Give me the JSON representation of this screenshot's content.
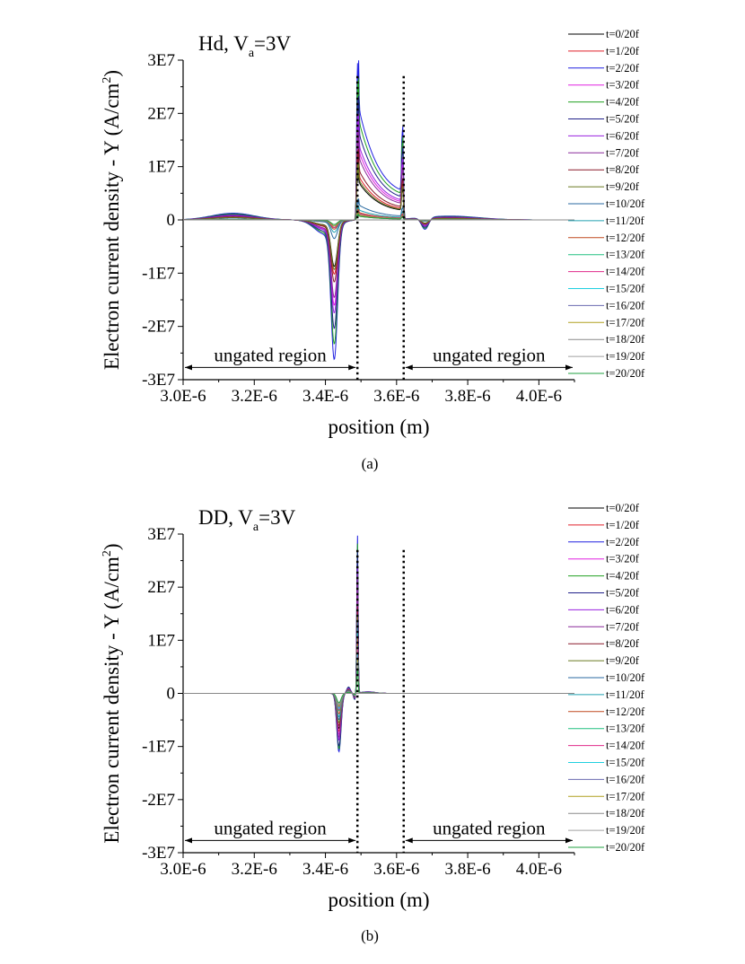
{
  "chart_data": [
    {
      "type": "line",
      "panel": "(a)",
      "title": "Hd, V",
      "title_sub": "a",
      "title_tail": "=3V",
      "xlabel": "position (m)",
      "ylabel": "Electron current density - Y (A/cm",
      "ylabel_sup": "2",
      "ylabel_tail": ")",
      "xlim": [
        3e-06,
        4.1e-06
      ],
      "ylim": [
        -30000000.0,
        30000000.0
      ],
      "xticks": [
        "3.0E-6",
        "3.2E-6",
        "3.4E-6",
        "3.6E-6",
        "3.8E-6",
        "4.0E-6"
      ],
      "yticks": [
        "3E7",
        "2E7",
        "1E7",
        "0",
        "-1E7",
        "-2E7",
        "-3E7"
      ],
      "gate_edges": [
        3.49e-06,
        3.62e-06
      ],
      "annotations": [
        "ungated region",
        "ungated region"
      ],
      "legend_position": "right",
      "series": [
        {
          "name": "t=0/20f",
          "color": "#000000",
          "amp": 0.3
        },
        {
          "name": "t=1/20f",
          "color": "#e0202a",
          "amp": 0.35
        },
        {
          "name": "t=2/20f",
          "color": "#2020e0",
          "amp": 0.9
        },
        {
          "name": "t=3/20f",
          "color": "#e020e0",
          "amp": 0.55
        },
        {
          "name": "t=4/20f",
          "color": "#20a020",
          "amp": 0.8
        },
        {
          "name": "t=5/20f",
          "color": "#20208a",
          "amp": 0.7
        },
        {
          "name": "t=6/20f",
          "color": "#9a20e0",
          "amp": 0.6
        },
        {
          "name": "t=7/20f",
          "color": "#8a2a9a",
          "amp": 0.5
        },
        {
          "name": "t=8/20f",
          "color": "#8a1a2a",
          "amp": 0.4
        },
        {
          "name": "t=9/20f",
          "color": "#6a7a20",
          "amp": 0.32
        },
        {
          "name": "t=10/20f",
          "color": "#2a6aa0",
          "amp": 0.12
        },
        {
          "name": "t=11/20f",
          "color": "#20a0b0",
          "amp": 0.08
        },
        {
          "name": "t=12/20f",
          "color": "#c04a20",
          "amp": 0.06
        },
        {
          "name": "t=13/20f",
          "color": "#20c080",
          "amp": 0.05
        },
        {
          "name": "t=14/20f",
          "color": "#e02a8a",
          "amp": 0.05
        },
        {
          "name": "t=15/20f",
          "color": "#20d0e0",
          "amp": 0.04
        },
        {
          "name": "t=16/20f",
          "color": "#6a6ab0",
          "amp": 0.04
        },
        {
          "name": "t=17/20f",
          "color": "#b0a020",
          "amp": 0.04
        },
        {
          "name": "t=18/20f",
          "color": "#8a8a8a",
          "amp": 0.03
        },
        {
          "name": "t=19/20f",
          "color": "#a0a0a0",
          "amp": 0.03
        },
        {
          "name": "t=20/20f",
          "color": "#20a040",
          "amp": 0.03
        }
      ],
      "caption": "(a)"
    },
    {
      "type": "line",
      "panel": "(b)",
      "title": "DD, V",
      "title_sub": "a",
      "title_tail": "=3V",
      "xlabel": "position (m)",
      "ylabel": "Electron current density - Y (A/cm",
      "ylabel_sup": "2",
      "ylabel_tail": ")",
      "xlim": [
        3e-06,
        4.1e-06
      ],
      "ylim": [
        -30000000.0,
        30000000.0
      ],
      "xticks": [
        "3.0E-6",
        "3.2E-6",
        "3.4E-6",
        "3.6E-6",
        "3.8E-6",
        "4.0E-6"
      ],
      "yticks": [
        "3E7",
        "2E7",
        "1E7",
        "0",
        "-1E7",
        "-2E7",
        "-3E7"
      ],
      "gate_edges": [
        3.49e-06,
        3.62e-06
      ],
      "annotations": [
        "ungated region",
        "ungated region"
      ],
      "legend_position": "right",
      "series": [
        {
          "name": "t=0/20f",
          "color": "#000000",
          "amp": 0.6
        },
        {
          "name": "t=1/20f",
          "color": "#e0202a",
          "amp": 0.65
        },
        {
          "name": "t=2/20f",
          "color": "#2020e0",
          "amp": 1.0
        },
        {
          "name": "t=3/20f",
          "color": "#e020e0",
          "amp": 0.7
        },
        {
          "name": "t=4/20f",
          "color": "#20a020",
          "amp": 0.95
        },
        {
          "name": "t=5/20f",
          "color": "#20208a",
          "amp": 0.9
        },
        {
          "name": "t=6/20f",
          "color": "#9a20e0",
          "amp": 0.8
        },
        {
          "name": "t=7/20f",
          "color": "#8a2a9a",
          "amp": 0.75
        },
        {
          "name": "t=8/20f",
          "color": "#8a1a2a",
          "amp": 0.55
        },
        {
          "name": "t=9/20f",
          "color": "#6a7a20",
          "amp": 0.5
        },
        {
          "name": "t=10/20f",
          "color": "#2a6aa0",
          "amp": 0.45
        },
        {
          "name": "t=11/20f",
          "color": "#20a0b0",
          "amp": 0.4
        },
        {
          "name": "t=12/20f",
          "color": "#c04a20",
          "amp": 0.35
        },
        {
          "name": "t=13/20f",
          "color": "#20c080",
          "amp": 0.3
        },
        {
          "name": "t=14/20f",
          "color": "#e02a8a",
          "amp": 0.28
        },
        {
          "name": "t=15/20f",
          "color": "#20d0e0",
          "amp": 0.26
        },
        {
          "name": "t=16/20f",
          "color": "#6a6ab0",
          "amp": 0.24
        },
        {
          "name": "t=17/20f",
          "color": "#b0a020",
          "amp": 0.22
        },
        {
          "name": "t=18/20f",
          "color": "#8a8a8a",
          "amp": 0.2
        },
        {
          "name": "t=19/20f",
          "color": "#a0a0a0",
          "amp": 0.18
        },
        {
          "name": "t=20/20f",
          "color": "#20a040",
          "amp": 0.16
        }
      ],
      "caption": "(b)"
    }
  ]
}
